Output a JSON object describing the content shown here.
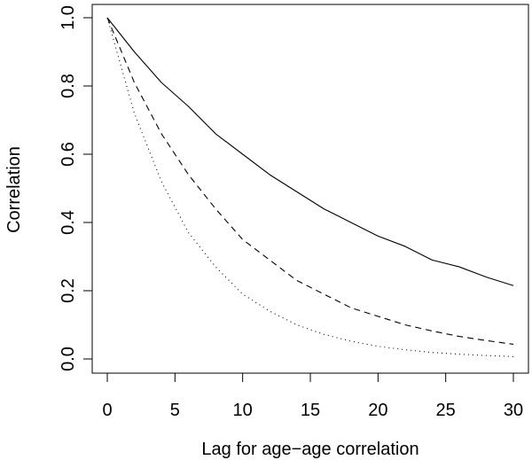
{
  "chart_data": {
    "type": "line",
    "title": "",
    "xlabel": "Lag for age−age correlation",
    "ylabel": "Correlation",
    "xlim": [
      0,
      30
    ],
    "ylim": [
      0,
      1
    ],
    "x_ticks": [
      0,
      5,
      10,
      15,
      20,
      25,
      30
    ],
    "x_tick_labels": [
      "0",
      "5",
      "10",
      "15",
      "20",
      "25",
      "30"
    ],
    "y_ticks": [
      0.0,
      0.2,
      0.4,
      0.6,
      0.8,
      1.0
    ],
    "y_tick_labels": [
      "0.0",
      "0.2",
      "0.4",
      "0.6",
      "0.8",
      "1.0"
    ],
    "grid": false,
    "legend": "none",
    "x": [
      0,
      2,
      4,
      6,
      8,
      10,
      12,
      14,
      16,
      18,
      20,
      22,
      24,
      26,
      28,
      30
    ],
    "series": [
      {
        "style": "solid",
        "values": [
          1.0,
          0.9,
          0.81,
          0.74,
          0.66,
          0.6,
          0.54,
          0.49,
          0.44,
          0.4,
          0.36,
          0.33,
          0.29,
          0.27,
          0.24,
          0.215
        ]
      },
      {
        "style": "dashed",
        "values": [
          1.0,
          0.81,
          0.66,
          0.54,
          0.44,
          0.35,
          0.29,
          0.23,
          0.19,
          0.15,
          0.125,
          0.1,
          0.082,
          0.066,
          0.054,
          0.043
        ]
      },
      {
        "style": "dotted",
        "values": [
          1.0,
          0.72,
          0.52,
          0.37,
          0.27,
          0.19,
          0.14,
          0.1,
          0.072,
          0.052,
          0.037,
          0.027,
          0.019,
          0.014,
          0.01,
          0.007
        ]
      }
    ]
  }
}
